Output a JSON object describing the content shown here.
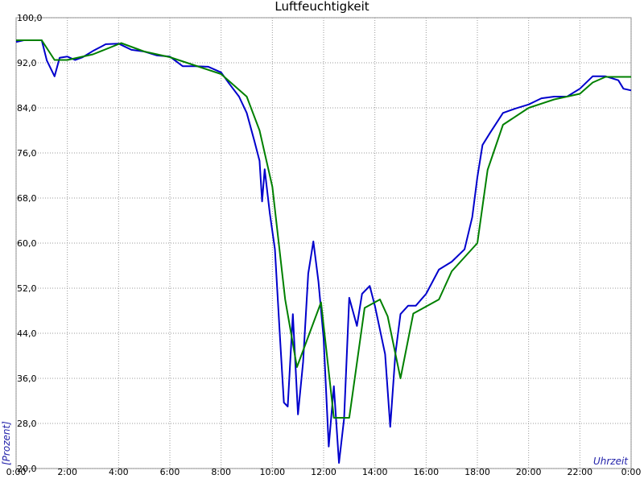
{
  "chart_data": {
    "type": "line",
    "title": "Luftfeuchtigkeit",
    "y_label": "[Prozent]",
    "x_label": "Uhrzeit",
    "xlim": [
      0,
      24
    ],
    "ylim": [
      20,
      100
    ],
    "grid": true,
    "xticks": [
      {
        "value": 0,
        "label": "0:00"
      },
      {
        "value": 2,
        "label": "2:00"
      },
      {
        "value": 4,
        "label": "4:00"
      },
      {
        "value": 6,
        "label": "6:00"
      },
      {
        "value": 8,
        "label": "8:00"
      },
      {
        "value": 10,
        "label": "10:00"
      },
      {
        "value": 12,
        "label": "12:00"
      },
      {
        "value": 14,
        "label": "14:00"
      },
      {
        "value": 16,
        "label": "16:00"
      },
      {
        "value": 18,
        "label": "18:00"
      },
      {
        "value": 20,
        "label": "20:00"
      },
      {
        "value": 22,
        "label": "22:00"
      },
      {
        "value": 24,
        "label": "0:00"
      }
    ],
    "yticks": [
      {
        "value": 20,
        "label": "20,0"
      },
      {
        "value": 28,
        "label": "28,0"
      },
      {
        "value": 36,
        "label": "36,0"
      },
      {
        "value": 44,
        "label": "44,0"
      },
      {
        "value": 52,
        "label": "52,0"
      },
      {
        "value": 60,
        "label": "60,0"
      },
      {
        "value": 68,
        "label": "68,0"
      },
      {
        "value": 76,
        "label": "76,0"
      },
      {
        "value": 84,
        "label": "84,0"
      },
      {
        "value": 92,
        "label": "92,0"
      },
      {
        "value": 100,
        "label": "100,0"
      }
    ],
    "series": [
      {
        "color": "#0000cc",
        "x": [
          0,
          0.3,
          1.0,
          1.2,
          1.5,
          1.7,
          2.0,
          2.3,
          2.6,
          3.0,
          3.5,
          4.0,
          4.5,
          5.0,
          5.5,
          6.0,
          6.5,
          7.0,
          7.5,
          8.0,
          8.3,
          8.7,
          9.0,
          9.3,
          9.5,
          9.6,
          9.7,
          9.9,
          10.1,
          10.3,
          10.45,
          10.6,
          10.8,
          11.0,
          11.2,
          11.4,
          11.6,
          11.8,
          12.0,
          12.2,
          12.4,
          12.6,
          12.8,
          13.0,
          13.3,
          13.5,
          13.8,
          14.0,
          14.2,
          14.4,
          14.6,
          14.8,
          15.0,
          15.3,
          15.6,
          16.0,
          16.5,
          17.0,
          17.5,
          17.8,
          18.0,
          18.2,
          18.5,
          19.0,
          19.5,
          20.0,
          20.5,
          21.0,
          21.5,
          22.0,
          22.5,
          23.0,
          23.5,
          23.7,
          24.0
        ],
        "values": [
          95.7,
          96,
          96,
          92.4,
          89.6,
          92.9,
          93.1,
          92.5,
          93,
          94.1,
          95.3,
          95.4,
          94.3,
          94,
          93.3,
          93.1,
          91.4,
          91.4,
          91.3,
          90.3,
          88.4,
          86,
          83.1,
          78.1,
          74.6,
          67.4,
          73.1,
          65.3,
          58.9,
          43.1,
          31.7,
          31,
          47.4,
          29.6,
          38.9,
          54.6,
          60.3,
          53.1,
          43.1,
          23.9,
          34.6,
          21,
          28.9,
          50.3,
          45.3,
          51,
          52.4,
          48.9,
          44.6,
          40.3,
          27.4,
          40.3,
          47.4,
          48.9,
          48.9,
          51,
          55.3,
          56.7,
          58.9,
          64.6,
          71.7,
          77.4,
          79.6,
          83.1,
          83.9,
          84.6,
          85.7,
          86,
          86,
          87.4,
          89.6,
          89.6,
          88.9,
          87.4,
          87.1
        ]
      },
      {
        "color": "#008000",
        "x": [
          0,
          1,
          1.5,
          2,
          3,
          4.1,
          5,
          6,
          7,
          8,
          9,
          9.5,
          10,
          10.5,
          10.96,
          11.9,
          12.4,
          13,
          13.6,
          14.2,
          14.5,
          15.0,
          15.5,
          16.5,
          17,
          18,
          18.4,
          19,
          20,
          21,
          22,
          22.5,
          23,
          24
        ],
        "values": [
          96,
          96,
          92.5,
          92.5,
          93.5,
          95.5,
          94,
          93,
          91.5,
          90,
          86,
          80,
          70,
          50,
          38,
          49.5,
          29,
          29,
          48.5,
          50,
          47,
          36,
          47.5,
          50,
          55,
          60,
          73,
          81,
          84,
          85.5,
          86.5,
          88.5,
          89.5,
          89.5
        ]
      }
    ]
  }
}
